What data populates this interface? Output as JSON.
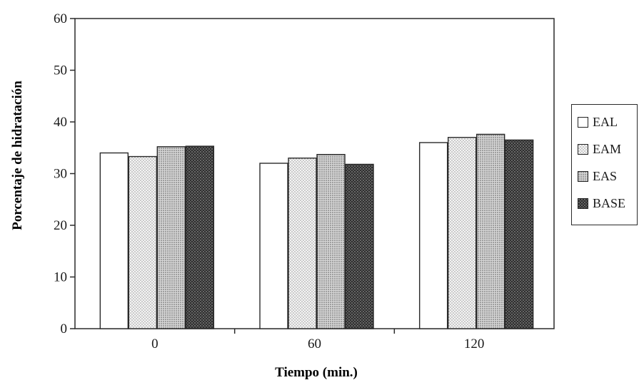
{
  "chart_data": {
    "type": "bar",
    "title": "",
    "xlabel": "Tiempo (min.)",
    "ylabel": "Porcentaje de hidratación",
    "categories": [
      "0",
      "60",
      "120"
    ],
    "ylim": [
      0,
      60
    ],
    "yticks": [
      "0",
      "10",
      "20",
      "30",
      "40",
      "50",
      "60"
    ],
    "grid": false,
    "legend_position": "right",
    "series": [
      {
        "name": "EAL",
        "values": [
          34.0,
          32.0,
          36.0
        ],
        "pattern": "white"
      },
      {
        "name": "EAM",
        "values": [
          33.3,
          33.0,
          37.0
        ],
        "pattern": "light-dots"
      },
      {
        "name": "EAS",
        "values": [
          35.2,
          33.7,
          37.6
        ],
        "pattern": "medium-dots"
      },
      {
        "name": "BASE",
        "values": [
          35.3,
          31.8,
          36.5
        ],
        "pattern": "dark-dots"
      }
    ]
  },
  "colors": {
    "axis": "#2a2a2a",
    "white": "#ffffff",
    "light-dots": "#f2f2f2",
    "medium-dots": "#cfcfcf",
    "dark-dots": "#3a3a3a"
  }
}
